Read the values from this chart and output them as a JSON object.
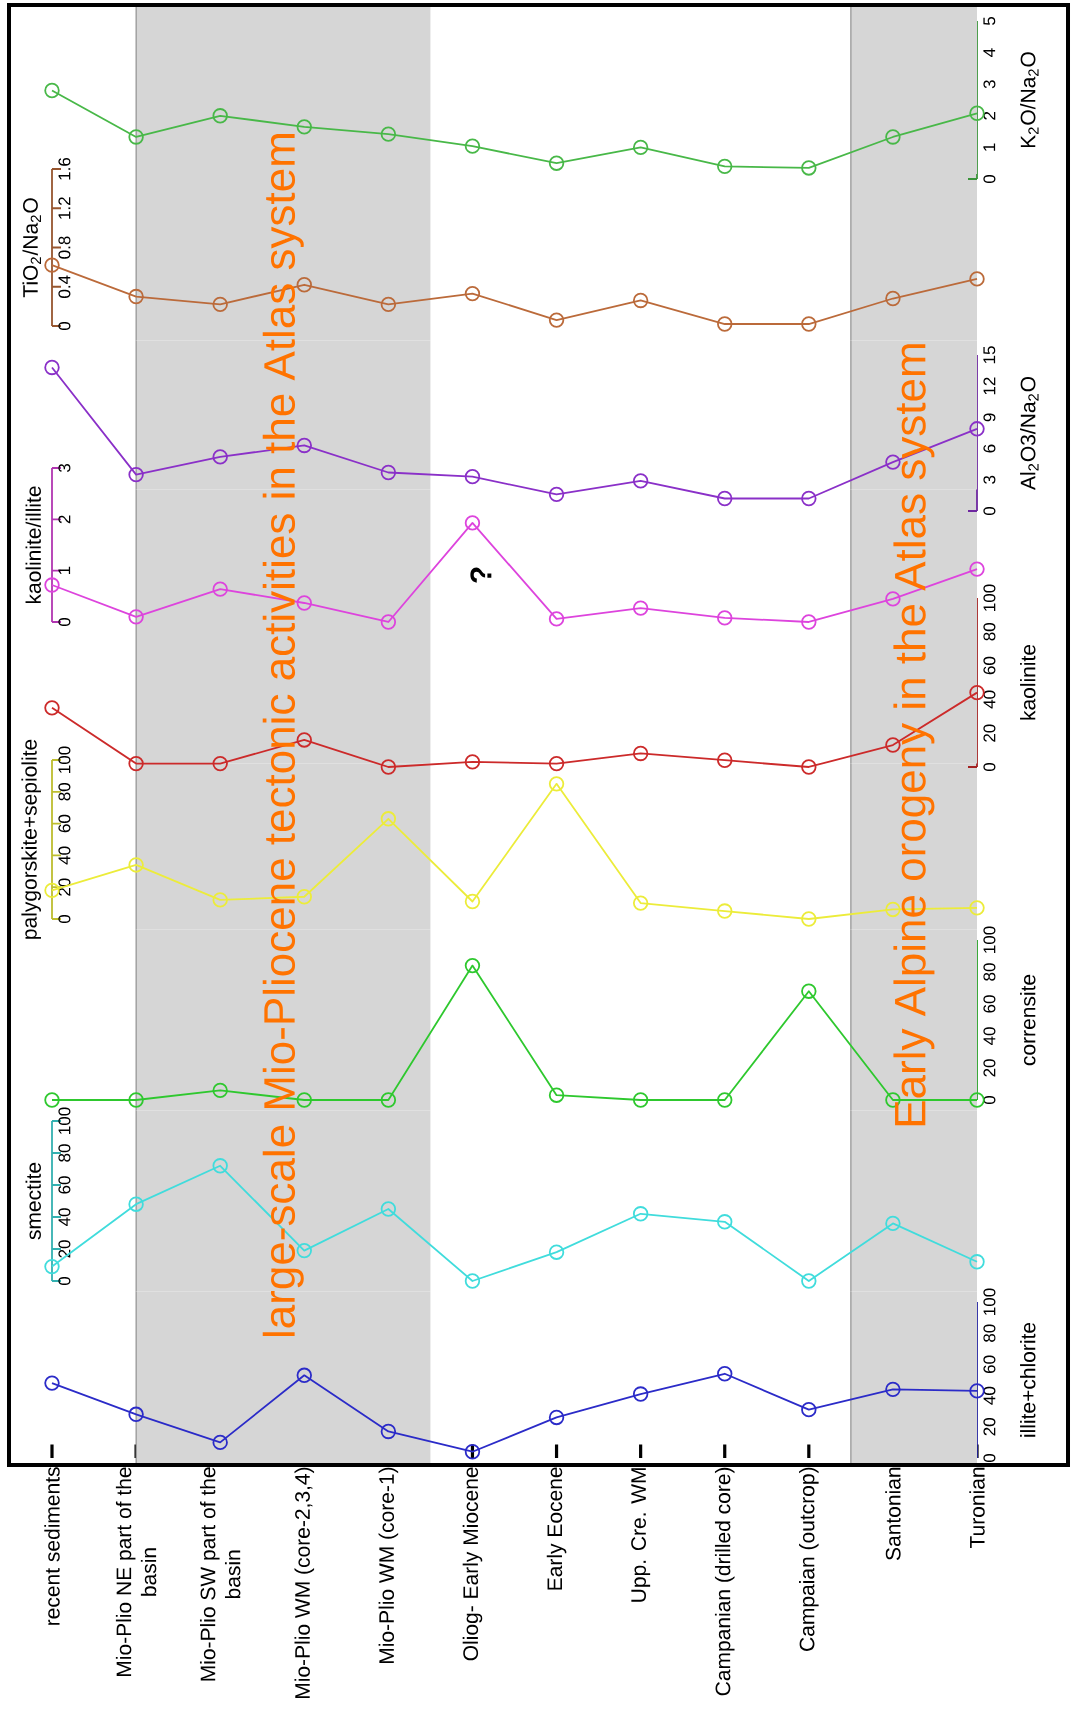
{
  "chart_data": [
    {
      "type": "line",
      "tick_labels": "y",
      "marker": "circle",
      "categories": [
        "recent sediments",
        "Mio-Plio NE part of the basin",
        "Mio-Plio SW part of the basin",
        "Mio-Plio WM (core-2,3,4)",
        "Mio-Plio WM (core-1)",
        "Oliog- Early Miocene",
        "Early Eocene",
        "Upp. Cre. WM",
        "Campanian (drilled core)",
        "Campaian (outcrop)",
        "Santonian",
        "Turonian"
      ],
      "series": [
        {
          "color": "#48b848",
          "values": [
            2.8,
            1.33,
            2.0,
            1.65,
            1.42,
            1.04,
            0.5,
            1.0,
            0.4,
            0.35,
            1.33,
            2.08
          ]
        }
      ],
      "ylabel": "K$_{2}$O/Na$_{2}$O",
      "ylim": [
        0,
        5
      ],
      "yticks": [
        0,
        1,
        2,
        3,
        4,
        5
      ],
      "bands": [
        {
          "axis": "x",
          "from": "Mio-Plio NE part of the basin",
          "to": "Mio-Plio WM (core-1)",
          "color": "#d6d6d6",
          "label": "large-scale Mio-Pliocene tectonic activities in the Atlas system"
        },
        {
          "axis": "x",
          "from": "Santonian",
          "to": "Turonian",
          "color": "#d6d6d6",
          "label": "Early Alpine orogeny in the Atlas system"
        }
      ]
    },
    {
      "type": "line",
      "tick_labels": "y",
      "marker": "circle",
      "categories": [
        "recent sediments",
        "Mio-Plio NE part of the basin",
        "Mio-Plio SW part of the basin",
        "Mio-Plio WM (core-2,3,4)",
        "Mio-Plio WM (core-1)",
        "Oliog- Early Miocene",
        "Early Eocene",
        "Upp. Cre. WM",
        "Campanian (drilled core)",
        "Campaian (outcrop)",
        "Santonian",
        "Turonian"
      ],
      "series": [
        {
          "color": "#bb6a3a",
          "values": [
            0.62,
            0.3,
            0.22,
            0.42,
            0.22,
            0.33,
            0.06,
            0.26,
            0.02,
            0.02,
            0.28,
            0.48
          ]
        }
      ],
      "ylabel": "TiO$_{2}$/Na$_{2}$O",
      "ylim": [
        0,
        1.6
      ],
      "yticks": [
        0,
        0.4,
        0.8,
        1.2,
        1.6
      ],
      "bands": [
        {
          "axis": "x",
          "from": "Mio-Plio NE part of the basin",
          "to": "Mio-Plio WM (core-1)",
          "color": "#d6d6d6"
        },
        {
          "axis": "x",
          "from": "Santonian",
          "to": "Turonian",
          "color": "#d6d6d6"
        }
      ]
    },
    {
      "type": "line",
      "tick_labels": "y",
      "marker": "circle",
      "categories": [
        "recent sediments",
        "Mio-Plio NE part of the basin",
        "Mio-Plio SW part of the basin",
        "Mio-Plio WM (core-2,3,4)",
        "Mio-Plio WM (core-1)",
        "Oliog- Early Miocene",
        "Early Eocene",
        "Upp. Cre. WM",
        "Campanian (drilled core)",
        "Campaian (outcrop)",
        "Santonian",
        "Turonian"
      ],
      "series": [
        {
          "color": "#8a30c8",
          "values": [
            13.8,
            3.5,
            5.2,
            6.3,
            3.7,
            3.3,
            1.6,
            2.9,
            1.2,
            1.2,
            4.7,
            7.9
          ]
        }
      ],
      "ylabel": "Al$_{2}$O3/Na$_{2}$O",
      "ylim": [
        0,
        15
      ],
      "yticks": [
        0,
        3,
        6,
        9,
        12,
        15
      ],
      "bands": [
        {
          "axis": "x",
          "from": "Mio-Plio NE part of the basin",
          "to": "Mio-Plio WM (core-1)",
          "color": "#d6d6d6"
        },
        {
          "axis": "x",
          "from": "Santonian",
          "to": "Turonian",
          "color": "#d6d6d6"
        }
      ]
    },
    {
      "type": "line",
      "tick_labels": "y",
      "marker": "circle",
      "categories": [
        "recent sediments",
        "Mio-Plio NE part of the basin",
        "Mio-Plio SW part of the basin",
        "Mio-Plio WM (core-2,3,4)",
        "Mio-Plio WM (core-1)",
        "Oliog- Early Miocene",
        "Early Eocene",
        "Upp. Cre. WM",
        "Campanian (drilled core)",
        "Campaian (outcrop)",
        "Santonian",
        "Turonian"
      ],
      "series": [
        {
          "color": "#dd44dd",
          "values": [
            0.72,
            0.1,
            0.64,
            0.37,
            0,
            1.93,
            0.06,
            0.27,
            0.08,
            0,
            0.45,
            1.03
          ]
        }
      ],
      "ylabel": "kaolinite/illite",
      "ylim": [
        0,
        3
      ],
      "yticks": [
        0,
        1,
        2,
        3
      ],
      "bands": [
        {
          "axis": "x",
          "from": "Mio-Plio NE part of the basin",
          "to": "Mio-Plio WM (core-1)",
          "color": "#d6d6d6"
        },
        {
          "axis": "x",
          "from": "Santonian",
          "to": "Turonian",
          "color": "#d6d6d6"
        }
      ],
      "annotations": [
        "?"
      ]
    },
    {
      "type": "line",
      "tick_labels": "y",
      "marker": "circle",
      "categories": [
        "recent sediments",
        "Mio-Plio NE part of the basin",
        "Mio-Plio SW part of the basin",
        "Mio-Plio WM (core-2,3,4)",
        "Mio-Plio WM (core-1)",
        "Oliog- Early Miocene",
        "Early Eocene",
        "Upp. Cre. WM",
        "Campanian (drilled core)",
        "Campaian (outcrop)",
        "Santonian",
        "Turonian"
      ],
      "series": [
        {
          "color": "#cc2a2a",
          "values": [
            35,
            2,
            2,
            16,
            0,
            3,
            2,
            8,
            4,
            0,
            13,
            44
          ]
        }
      ],
      "ylabel": "kaolinite",
      "ylim": [
        0,
        100
      ],
      "yticks": [
        0,
        20,
        40,
        60,
        80,
        100
      ],
      "bands": [
        {
          "axis": "x",
          "from": "Mio-Plio NE part of the basin",
          "to": "Mio-Plio WM (core-1)",
          "color": "#d6d6d6"
        },
        {
          "axis": "x",
          "from": "Santonian",
          "to": "Turonian",
          "color": "#d6d6d6"
        }
      ]
    },
    {
      "type": "line",
      "tick_labels": "y",
      "marker": "circle",
      "categories": [
        "recent sediments",
        "Mio-Plio NE part of the basin",
        "Mio-Plio SW part of the basin",
        "Mio-Plio WM (core-2,3,4)",
        "Mio-Plio WM (core-1)",
        "Oliog- Early Miocene",
        "Early Eocene",
        "Upp. Cre. WM",
        "Campanian (drilled core)",
        "Campaian (outcrop)",
        "Santonian",
        "Turonian"
      ],
      "series": [
        {
          "color": "#ecec3a",
          "values": [
            18,
            34,
            12,
            14,
            63,
            11,
            85,
            10,
            5,
            0,
            6,
            7
          ]
        }
      ],
      "ylabel": "palygorskite+sepiolite",
      "ylim": [
        0,
        100
      ],
      "yticks": [
        0,
        20,
        40,
        60,
        80,
        100
      ],
      "bands": [
        {
          "axis": "x",
          "from": "Mio-Plio NE part of the basin",
          "to": "Mio-Plio WM (core-1)",
          "color": "#d6d6d6"
        },
        {
          "axis": "x",
          "from": "Santonian",
          "to": "Turonian",
          "color": "#d6d6d6"
        }
      ]
    },
    {
      "type": "line",
      "tick_labels": "y",
      "marker": "circle",
      "categories": [
        "recent sediments",
        "Mio-Plio NE part of the basin",
        "Mio-Plio SW part of the basin",
        "Mio-Plio WM (core-2,3,4)",
        "Mio-Plio WM (core-1)",
        "Oliog- Early Miocene",
        "Early Eocene",
        "Upp. Cre. WM",
        "Campanian (drilled core)",
        "Campaian (outcrop)",
        "Santonian",
        "Turonian"
      ],
      "series": [
        {
          "color": "#2ec82e",
          "values": [
            0,
            0,
            6,
            0,
            0,
            84,
            3,
            0,
            0,
            68,
            0,
            0
          ]
        }
      ],
      "ylabel": "corrensite",
      "ylim": [
        0,
        100
      ],
      "yticks": [
        0,
        20,
        40,
        60,
        80,
        100
      ],
      "bands": [
        {
          "axis": "x",
          "from": "Mio-Plio NE part of the basin",
          "to": "Mio-Plio WM (core-1)",
          "color": "#d6d6d6"
        },
        {
          "axis": "x",
          "from": "Santonian",
          "to": "Turonian",
          "color": "#d6d6d6"
        }
      ]
    },
    {
      "type": "line",
      "tick_labels": "y",
      "marker": "circle",
      "categories": [
        "recent sediments",
        "Mio-Plio NE part of the basin",
        "Mio-Plio SW part of the basin",
        "Mio-Plio WM (core-2,3,4)",
        "Mio-Plio WM (core-1)",
        "Oliog- Early Miocene",
        "Early Eocene",
        "Upp. Cre. WM",
        "Campanian (drilled core)",
        "Campaian (outcrop)",
        "Santonian",
        "Turonian"
      ],
      "series": [
        {
          "color": "#40dcdc",
          "values": [
            9,
            48,
            72,
            19,
            45,
            0,
            18,
            42,
            37,
            0,
            36,
            12
          ]
        }
      ],
      "ylabel": "smectite",
      "ylim": [
        0,
        100
      ],
      "yticks": [
        0,
        20,
        40,
        60,
        80,
        100
      ],
      "bands": [
        {
          "axis": "x",
          "from": "Mio-Plio NE part of the basin",
          "to": "Mio-Plio WM (core-1)",
          "color": "#d6d6d6"
        },
        {
          "axis": "x",
          "from": "Santonian",
          "to": "Turonian",
          "color": "#d6d6d6"
        }
      ]
    },
    {
      "type": "line",
      "marker": "circle",
      "categories": [
        "recent sediments",
        "Mio-Plio NE part of the basin",
        "Mio-Plio SW part of the basin",
        "Mio-Plio WM (core-2,3,4)",
        "Mio-Plio WM (core-1)",
        "Oliog- Early Miocene",
        "Early Eocene",
        "Upp. Cre. WM",
        "Campanian (drilled core)",
        "Campaian (outcrop)",
        "Santonian",
        "Turonian"
      ],
      "series": [
        {
          "color": "#2b2bc8",
          "values": [
            48,
            28,
            10,
            53,
            17,
            4,
            26,
            41,
            54,
            31,
            44,
            43
          ]
        }
      ],
      "ylabel": "illite+chlorite",
      "ylim": [
        0,
        100
      ],
      "yticks": [
        0,
        20,
        40,
        60,
        80,
        100
      ],
      "bands": [
        {
          "axis": "x",
          "from": "Mio-Plio NE part of the basin",
          "to": "Mio-Plio WM (core-1)",
          "color": "#d6d6d6"
        },
        {
          "axis": "x",
          "from": "Santonian",
          "to": "Turonian",
          "color": "#d6d6d6"
        }
      ]
    }
  ]
}
